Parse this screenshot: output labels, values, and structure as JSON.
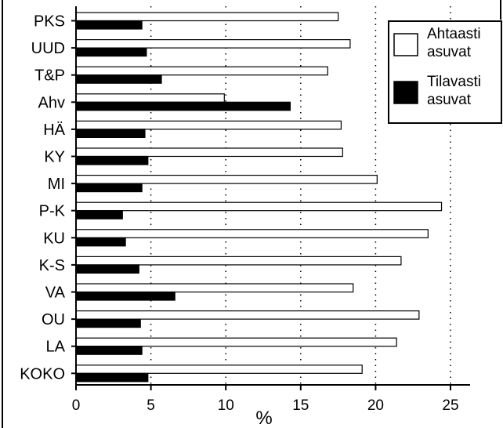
{
  "chart_data": {
    "type": "bar",
    "orientation": "horizontal",
    "categories": [
      "PKS",
      "UUD",
      "T&P",
      "Ahv",
      "HÄ",
      "KY",
      "MI",
      "P-K",
      "KU",
      "K-S",
      "VA",
      "OU",
      "LA",
      "KOKO"
    ],
    "series": [
      {
        "name": "Ahtaasti asuvat",
        "name_lines": [
          "Ahtaasti",
          "asuvat"
        ],
        "color": "#ffffff",
        "values": [
          17.5,
          18.3,
          16.8,
          9.9,
          17.7,
          17.8,
          20.1,
          24.4,
          23.5,
          21.7,
          18.5,
          22.9,
          21.4,
          19.1
        ]
      },
      {
        "name": "Tilavasti asuvat",
        "name_lines": [
          "Tilavasti",
          "asuvat"
        ],
        "color": "#000000",
        "values": [
          4.4,
          4.7,
          5.7,
          14.3,
          4.6,
          4.8,
          4.4,
          3.1,
          3.3,
          4.2,
          6.6,
          4.3,
          4.4,
          4.8
        ]
      }
    ],
    "xlabel": "%",
    "xlim": [
      0,
      25
    ],
    "xticks": [
      0,
      5,
      10,
      15,
      20,
      25
    ],
    "grid": "vertical-dotted",
    "legend": "top-right"
  }
}
